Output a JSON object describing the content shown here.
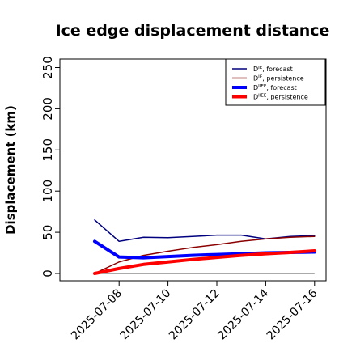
{
  "chart_data": {
    "type": "line",
    "title": "Ice edge displacement distance",
    "ylabel": "Displacement (km)",
    "xlabel": "",
    "ylim": [
      0,
      250
    ],
    "yticks": [
      0,
      50,
      100,
      150,
      200,
      250
    ],
    "x": [
      "2025-07-07",
      "2025-07-08",
      "2025-07-09",
      "2025-07-10",
      "2025-07-11",
      "2025-07-12",
      "2025-07-13",
      "2025-07-14",
      "2025-07-15",
      "2025-07-16"
    ],
    "xticks": [
      "2025-07-08",
      "2025-07-10",
      "2025-07-12",
      "2025-07-14",
      "2025-07-16"
    ],
    "highlight_tick": "2025-07-08",
    "highlight_color": "#228b22",
    "reference_line": 0,
    "legend_position": "top-right",
    "series": [
      {
        "name": "D^IE, forecast",
        "label_base": "D",
        "label_sup": "IE",
        "label_rest": ", forecast",
        "color": "#00007f",
        "width": 1.5,
        "values": [
          65,
          39,
          44,
          43.5,
          45,
          46.5,
          46.5,
          42,
          45,
          46
        ]
      },
      {
        "name": "D^IE, persistence",
        "label_base": "D",
        "label_sup": "IE",
        "label_rest": ", persistence",
        "color": "#8b0000",
        "width": 1.5,
        "values": [
          0,
          14,
          22,
          27,
          31.5,
          35,
          39,
          42,
          44,
          45
        ]
      },
      {
        "name": "D^IIEE, forecast",
        "label_base": "D",
        "label_sup": "IIEE",
        "label_rest": ", forecast",
        "color": "#0000ff",
        "width": 4,
        "values": [
          39,
          20,
          19,
          20.5,
          22,
          23,
          24,
          25,
          25.5,
          26
        ]
      },
      {
        "name": "D^IIEE, persistence",
        "label_base": "D",
        "label_sup": "IIEE",
        "label_rest": ", persistence",
        "color": "#ff0000",
        "width": 4,
        "values": [
          0,
          6,
          11,
          14,
          17,
          19.5,
          22,
          24,
          25.5,
          27.5
        ]
      }
    ]
  }
}
